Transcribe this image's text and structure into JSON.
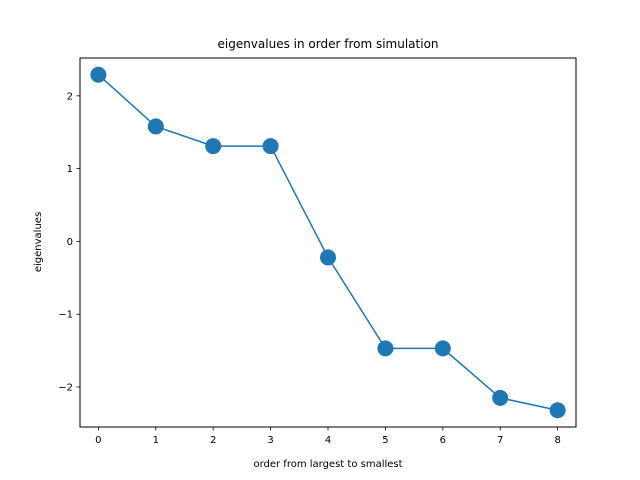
{
  "chart_data": {
    "type": "line",
    "title": "eigenvalues in order from simulation",
    "xlabel": "order from largest to smallest",
    "ylabel": "eigenvalues",
    "x": [
      0,
      1,
      2,
      3,
      4,
      5,
      6,
      7,
      8
    ],
    "series": [
      {
        "values": [
          2.29,
          1.58,
          1.31,
          1.31,
          -0.22,
          -1.47,
          -1.47,
          -2.15,
          -2.32
        ],
        "color": "#1f77b4",
        "marker": "circle"
      }
    ],
    "xlim": [
      -0.32,
      8.32
    ],
    "ylim": [
      -2.55,
      2.52
    ],
    "xticks": [
      0,
      1,
      2,
      3,
      4,
      5,
      6,
      7,
      8
    ],
    "yticks": [
      -2,
      -1,
      0,
      1,
      2
    ],
    "ytick_labels": [
      "−2",
      "−1",
      "0",
      "1",
      "2"
    ],
    "grid": false,
    "legend": false
  }
}
